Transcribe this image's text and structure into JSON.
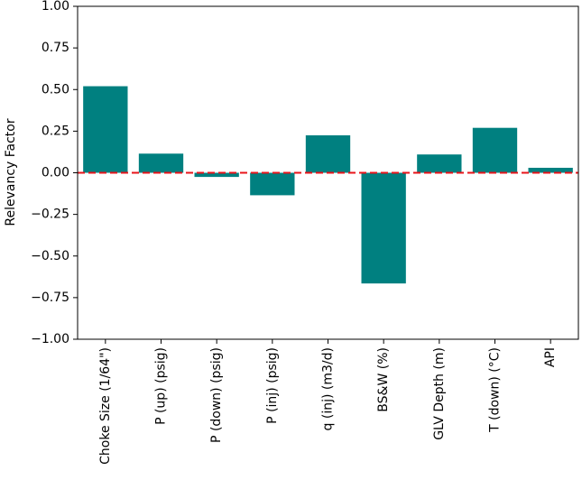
{
  "chart_data": {
    "type": "bar",
    "title": "",
    "xlabel": "",
    "ylabel": "Relevancy Factor",
    "categories": [
      "Choke Size (1/64\")",
      "P (up) (psig)",
      "P (down) (psig)",
      "P (inj) (psig)",
      "q (inj) (m3/d)",
      "BS&W (%)",
      "GLV Depth (m)",
      "T (down) (°C)",
      "API"
    ],
    "values": [
      0.52,
      0.115,
      -0.025,
      -0.135,
      0.225,
      -0.665,
      0.11,
      0.27,
      0.03
    ],
    "ylim": [
      -1.0,
      1.0
    ],
    "yticks": [
      -1.0,
      -0.75,
      -0.5,
      -0.25,
      0.0,
      0.25,
      0.5,
      0.75,
      1.0
    ],
    "ytick_labels": [
      "−1.00",
      "−0.75",
      "−0.50",
      "−0.25",
      "0.00",
      "0.25",
      "0.50",
      "0.75",
      "1.00"
    ],
    "reference_line": {
      "y": 0.0,
      "style": "dashed",
      "color": "#e8151b"
    },
    "bar_color": "#008080",
    "grid": false,
    "legend": "none"
  }
}
